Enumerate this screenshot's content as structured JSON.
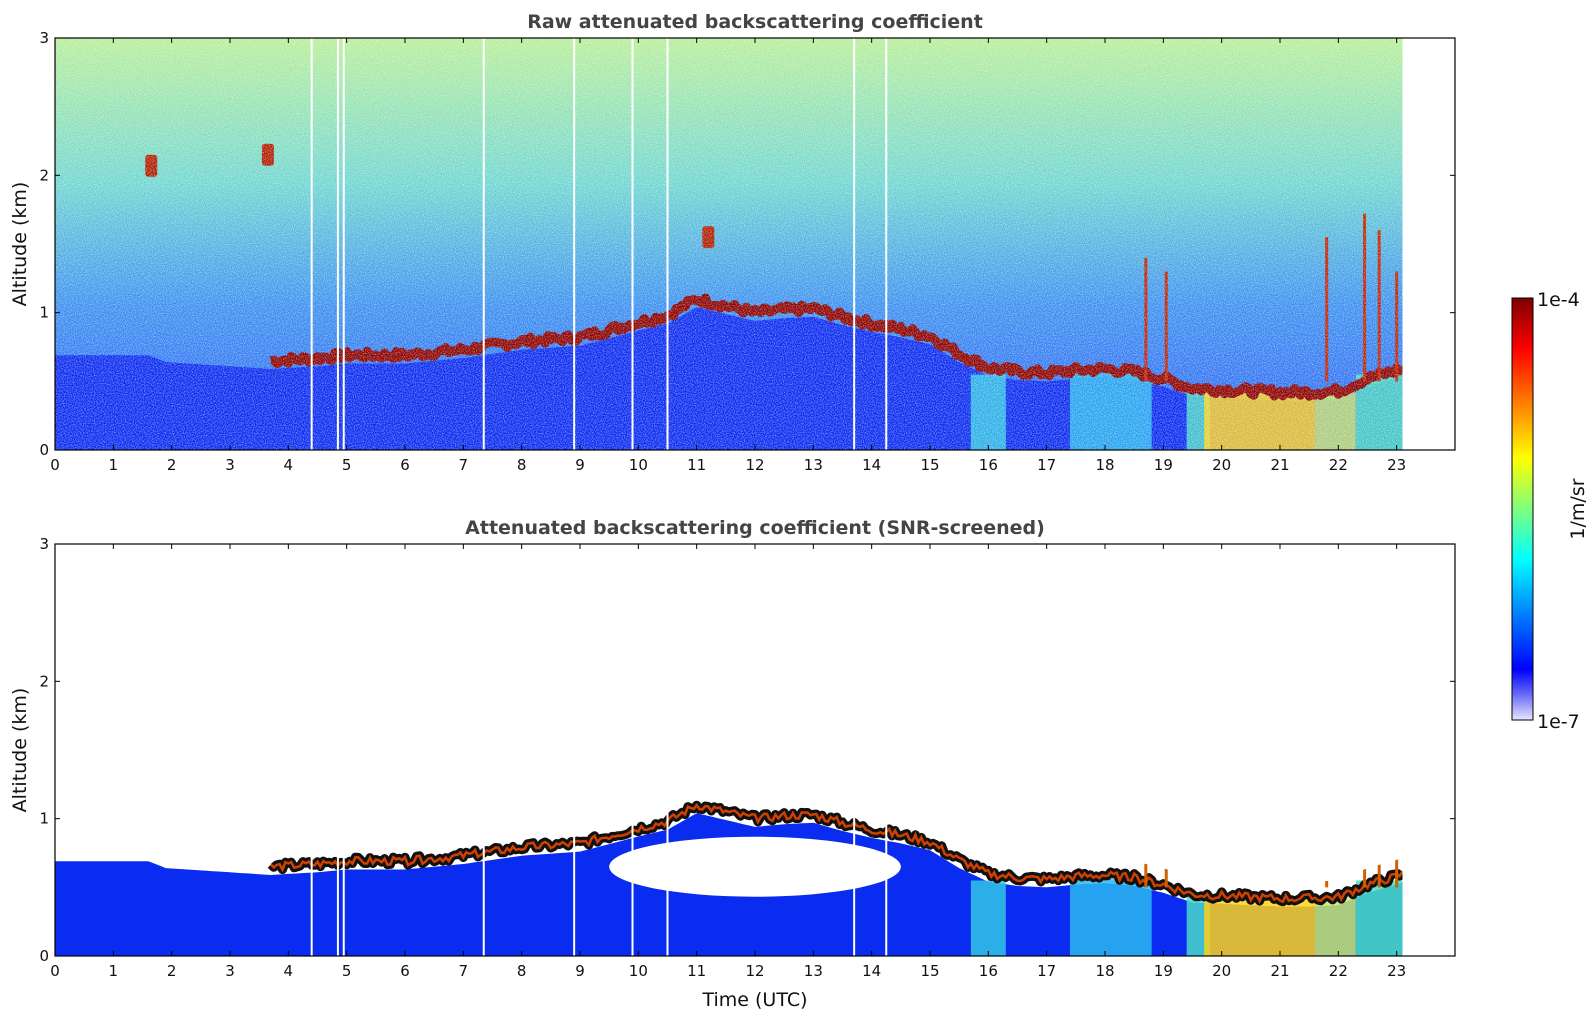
{
  "chart_data": [
    {
      "type": "heatmap",
      "title": "Raw attenuated backscattering coefficient",
      "xlabel": "",
      "ylabel": "Altitude (km)",
      "xlim": [
        0,
        24
      ],
      "ylim": [
        0,
        3
      ],
      "xticks": [
        "0",
        "1",
        "2",
        "3",
        "4",
        "5",
        "6",
        "7",
        "8",
        "9",
        "10",
        "11",
        "12",
        "13",
        "14",
        "15",
        "16",
        "17",
        "18",
        "19",
        "20",
        "21",
        "22",
        "23"
      ],
      "yticks": [
        "0",
        "1",
        "2",
        "3"
      ],
      "data_end_time": 23.1,
      "boundary_layer_top_km": {
        "x": [
          1.6,
          1.9,
          3.7,
          4.5,
          5,
          6,
          7,
          8,
          9,
          10,
          10.5,
          11,
          11.5,
          12,
          12.5,
          13,
          13.5,
          14,
          14.5,
          15,
          15.5,
          16,
          16.5,
          17,
          17.5,
          18,
          18.5,
          19,
          19.5,
          20,
          20.5,
          21,
          21.5,
          22,
          22.5,
          23,
          23.1
        ],
        "y": [
          0.75,
          0.7,
          0.65,
          0.67,
          0.69,
          0.69,
          0.73,
          0.79,
          0.82,
          0.93,
          0.98,
          1.1,
          1.05,
          1.0,
          1.02,
          1.03,
          0.97,
          0.92,
          0.88,
          0.83,
          0.7,
          0.6,
          0.57,
          0.56,
          0.58,
          0.59,
          0.57,
          0.52,
          0.45,
          0.44,
          0.43,
          0.42,
          0.42,
          0.43,
          0.52,
          0.58,
          0.6
        ]
      },
      "elevated_layers": [
        {
          "x": 1.65,
          "y": 2.07
        },
        {
          "x": 3.65,
          "y": 2.15
        },
        {
          "x": 11.2,
          "y": 1.55
        }
      ]
    },
    {
      "type": "heatmap",
      "title": "Attenuated backscattering coefficient (SNR-screened)",
      "xlabel": "Time (UTC)",
      "ylabel": "Altitude (km)",
      "xlim": [
        0,
        24
      ],
      "ylim": [
        0,
        3
      ],
      "xticks": [
        "0",
        "1",
        "2",
        "3",
        "4",
        "5",
        "6",
        "7",
        "8",
        "9",
        "10",
        "11",
        "12",
        "13",
        "14",
        "15",
        "16",
        "17",
        "18",
        "19",
        "20",
        "21",
        "22",
        "23"
      ],
      "yticks": [
        "0",
        "1",
        "2",
        "3"
      ]
    }
  ],
  "colorbar": {
    "label": "1/m/sr",
    "max_label": "1e-4",
    "min_label": "1e-7",
    "scale": "log",
    "colormap": "jet",
    "colors": [
      "#7f0000",
      "#ff0000",
      "#ff7f00",
      "#ffff00",
      "#7fff7f",
      "#00ffff",
      "#007fff",
      "#0000ff",
      "#e6e6ff"
    ]
  }
}
